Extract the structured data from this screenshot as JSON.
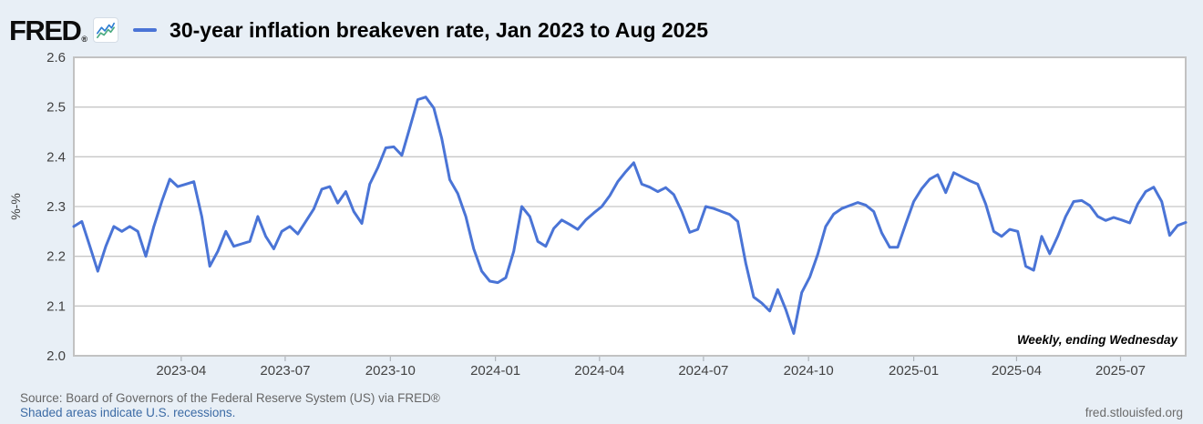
{
  "header": {
    "logo_text": "FRED",
    "registered_mark": "®",
    "title": "30-year inflation breakeven rate, Jan 2023 to Aug 2025"
  },
  "footer": {
    "source": "Source: Board of Governors of the Federal Reserve System (US) via FRED®",
    "recession_note": "Shaded areas indicate U.S. recessions.",
    "site": "fred.stlouisfed.org"
  },
  "colors": {
    "background": "#e8eff6",
    "plot_background": "#ffffff",
    "line": "#4a74d6",
    "grid": "#c6c6c6",
    "plot_border": "#c2c2c2",
    "tick_text": "#424242",
    "source_text": "#666666",
    "link_blue": "#3c6ba5",
    "logo_black": "#0d0d0d",
    "icon_blue": "#2d7dd2",
    "icon_green": "#4aaa80"
  },
  "chart_data": {
    "type": "line",
    "title": "30-year inflation breakeven rate, Jan 2023 to Aug 2025",
    "xlabel": "",
    "ylabel": "%-%",
    "ylim": [
      2.0,
      2.6
    ],
    "yticks": [
      2.0,
      2.1,
      2.2,
      2.3,
      2.4,
      2.5,
      2.6
    ],
    "xticks": [
      {
        "label": "2023-04",
        "f": 0.0966
      },
      {
        "label": "2023-07",
        "f": 0.1901
      },
      {
        "label": "2023-10",
        "f": 0.2847
      },
      {
        "label": "2024-01",
        "f": 0.3792
      },
      {
        "label": "2024-04",
        "f": 0.4728
      },
      {
        "label": "2024-07",
        "f": 0.5663
      },
      {
        "label": "2024-10",
        "f": 0.6608
      },
      {
        "label": "2025-01",
        "f": 0.7554
      },
      {
        "label": "2025-04",
        "f": 0.8479
      },
      {
        "label": "2025-07",
        "f": 0.9414
      }
    ],
    "grid": true,
    "legend_position": "top-left-dash",
    "annotation": "Weekly, ending Wednesday",
    "frequency": "Weekly, ending Wednesday",
    "x_start": "2023-01",
    "x_end": "2025-08",
    "series": [
      {
        "name": "30-year inflation breakeven rate",
        "color": "#4a74d6",
        "values": [
          2.26,
          2.27,
          2.22,
          2.17,
          2.22,
          2.26,
          2.25,
          2.26,
          2.25,
          2.2,
          2.26,
          2.31,
          2.355,
          2.34,
          2.345,
          2.35,
          2.28,
          2.18,
          2.21,
          2.25,
          2.22,
          2.225,
          2.23,
          2.28,
          2.24,
          2.215,
          2.25,
          2.26,
          2.245,
          2.27,
          2.295,
          2.335,
          2.34,
          2.307,
          2.33,
          2.29,
          2.266,
          2.345,
          2.378,
          2.418,
          2.42,
          2.403,
          2.458,
          2.515,
          2.52,
          2.498,
          2.437,
          2.354,
          2.326,
          2.28,
          2.215,
          2.17,
          2.15,
          2.147,
          2.157,
          2.21,
          2.3,
          2.28,
          2.23,
          2.22,
          2.256,
          2.273,
          2.264,
          2.254,
          2.273,
          2.287,
          2.3,
          2.322,
          2.35,
          2.37,
          2.388,
          2.345,
          2.339,
          2.33,
          2.338,
          2.324,
          2.29,
          2.248,
          2.254,
          2.3,
          2.296,
          2.29,
          2.284,
          2.27,
          2.186,
          2.118,
          2.106,
          2.09,
          2.133,
          2.093,
          2.045,
          2.127,
          2.158,
          2.204,
          2.26,
          2.285,
          2.296,
          2.302,
          2.308,
          2.303,
          2.29,
          2.247,
          2.218,
          2.218,
          2.265,
          2.31,
          2.336,
          2.355,
          2.364,
          2.328,
          2.368,
          2.36,
          2.352,
          2.345,
          2.305,
          2.25,
          2.24,
          2.254,
          2.25,
          2.18,
          2.172,
          2.24,
          2.205,
          2.24,
          2.28,
          2.31,
          2.312,
          2.302,
          2.28,
          2.272,
          2.278,
          2.273,
          2.267,
          2.305,
          2.33,
          2.339,
          2.31,
          2.242,
          2.262,
          2.268
        ]
      }
    ]
  }
}
